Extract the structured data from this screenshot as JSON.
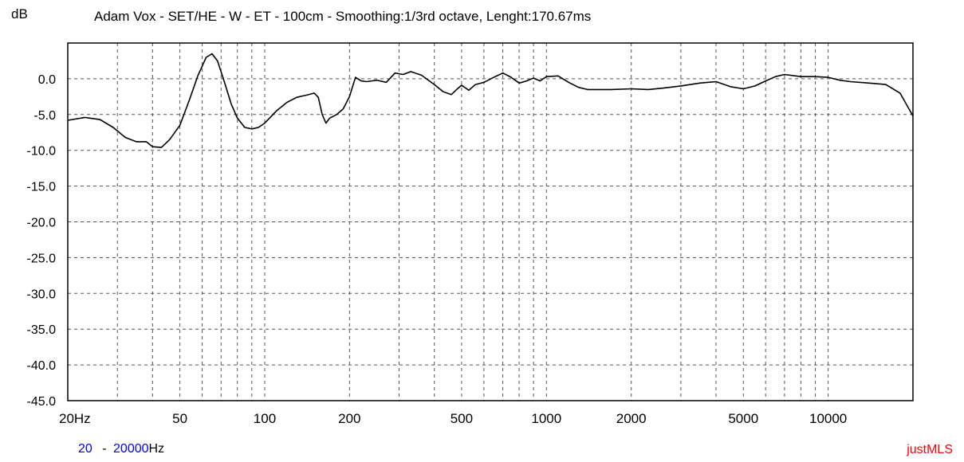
{
  "header": {
    "unit": "dB",
    "title": "Adam Vox - SET/HE - W - ET - 100cm - Smoothing:1/3rd octave, Lenght:170.67ms"
  },
  "footer": {
    "range_start": "20",
    "range_dash": "-",
    "range_end": "20000",
    "range_unit": "Hz",
    "app_name": "justMLS"
  },
  "colors": {
    "curve": "#000000",
    "grid": "#555555",
    "range_value": "#0000ff",
    "app_name": "#ff0000"
  },
  "chart_data": {
    "type": "line",
    "title": "Adam Vox - SET/HE - W - ET - 100cm - Smoothing:1/3rd octave, Lenght:170.67ms",
    "ylabel": "dB",
    "xlabel": "",
    "x_scale": "log",
    "xlim": [
      20,
      20000
    ],
    "ylim": [
      -45,
      5
    ],
    "grid": true,
    "y_ticks": [
      "0.0",
      "-5.0",
      "-10.0",
      "-15.0",
      "-20.0",
      "-25.0",
      "-30.0",
      "-35.0",
      "-40.0",
      "-45.0"
    ],
    "y_tick_values": [
      0,
      -5,
      -10,
      -15,
      -20,
      -25,
      -30,
      -35,
      -40,
      -45
    ],
    "x_ticks": [
      "20Hz",
      "50",
      "100",
      "200",
      "500",
      "1000",
      "2000",
      "5000",
      "10000"
    ],
    "x_tick_values": [
      20,
      50,
      100,
      200,
      500,
      1000,
      2000,
      5000,
      10000
    ],
    "series": [
      {
        "x": [
          20,
          23,
          26,
          29,
          32,
          35,
          38,
          40,
          43,
          46,
          50,
          54,
          58,
          62,
          65,
          68,
          72,
          76,
          80,
          85,
          90,
          95,
          100,
          110,
          120,
          130,
          140,
          150,
          155,
          160,
          165,
          170,
          180,
          190,
          200,
          210,
          220,
          230,
          250,
          270,
          290,
          310,
          330,
          360,
          400,
          430,
          460,
          480,
          500,
          530,
          560,
          600,
          650,
          700,
          750,
          800,
          850,
          900,
          950,
          1000,
          1100,
          1200,
          1300,
          1400,
          1500,
          1700,
          2000,
          2300,
          2600,
          3000,
          3500,
          4000,
          4500,
          5000,
          5500,
          6000,
          6500,
          7000,
          8000,
          9000,
          10000,
          11000,
          12000,
          14000,
          16000,
          18000,
          20000
        ],
        "y": [
          -5.8,
          -5.4,
          -5.7,
          -6.8,
          -8.2,
          -8.8,
          -8.8,
          -9.5,
          -9.6,
          -8.5,
          -6.5,
          -3.0,
          0.5,
          3.0,
          3.5,
          2.5,
          -0.5,
          -3.5,
          -5.5,
          -6.8,
          -7.0,
          -6.8,
          -6.2,
          -4.5,
          -3.3,
          -2.6,
          -2.3,
          -2.0,
          -2.6,
          -5.0,
          -6.2,
          -5.5,
          -5.0,
          -4.2,
          -2.5,
          0.2,
          -0.3,
          -0.4,
          -0.2,
          -0.5,
          0.8,
          0.6,
          1.0,
          0.5,
          -0.8,
          -1.8,
          -2.2,
          -1.5,
          -0.9,
          -1.6,
          -0.8,
          -0.5,
          0.2,
          0.8,
          0.2,
          -0.6,
          -0.3,
          0.1,
          -0.3,
          0.3,
          0.4,
          -0.5,
          -1.2,
          -1.5,
          -1.5,
          -1.5,
          -1.4,
          -1.5,
          -1.3,
          -1.0,
          -0.6,
          -0.4,
          -1.1,
          -1.4,
          -1.0,
          -0.3,
          0.3,
          0.6,
          0.3,
          0.3,
          0.2,
          -0.2,
          -0.4,
          -0.6,
          -0.8,
          -2.0,
          -5.2
        ]
      }
    ]
  }
}
